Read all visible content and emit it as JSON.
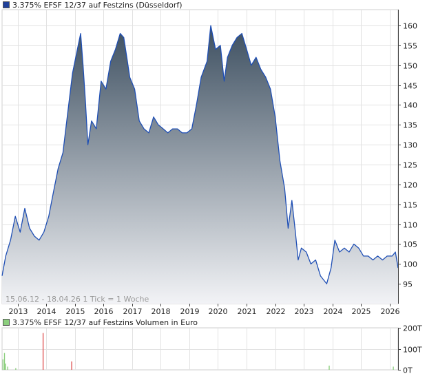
{
  "price_panel": {
    "legend_label": "3.375% EFSF 12/37 auf Festzins (Düsseldorf)",
    "legend_color": "#1f3f99",
    "info_text": "15.06.12 - 18.04.26   1 Tick = 1 Woche",
    "line_color": "#1f4fb5",
    "fill_top_color": "#3d4f60",
    "fill_bottom_color": "#f2f3f6"
  },
  "volume_panel": {
    "legend_label": "3.375% EFSF 12/37 auf Festzins Volumen in Euro",
    "legend_color": "#8ccf7e"
  },
  "chart_data": [
    {
      "type": "area",
      "title": "3.375% EFSF 12/37 auf Festzins (Düsseldorf)",
      "xlabel": "",
      "ylabel": "",
      "x_range": [
        "2012-06-15",
        "2026-04-18"
      ],
      "ylim": [
        90,
        164
      ],
      "y_ticks": [
        95,
        100,
        105,
        110,
        115,
        120,
        125,
        130,
        135,
        140,
        145,
        150,
        155,
        160
      ],
      "x_ticks": [
        "2013",
        "2014",
        "2015",
        "2016",
        "2017",
        "2018",
        "2019",
        "2020",
        "2021",
        "2022",
        "2023",
        "2024",
        "2025",
        "2026"
      ],
      "grid": true,
      "y_axis_side": "right",
      "series": [
        {
          "name": "3.375% EFSF 12/37 auf Festzins",
          "x": [
            "2012-06-15",
            "2012-08-01",
            "2012-10-01",
            "2012-12-01",
            "2013-02-01",
            "2013-04-01",
            "2013-06-01",
            "2013-08-01",
            "2013-10-01",
            "2013-12-01",
            "2014-02-01",
            "2014-04-01",
            "2014-06-01",
            "2014-08-01",
            "2014-10-01",
            "2014-12-01",
            "2015-02-01",
            "2015-03-15",
            "2015-04-15",
            "2015-05-15",
            "2015-06-15",
            "2015-08-01",
            "2015-10-01",
            "2015-12-01",
            "2016-02-01",
            "2016-04-01",
            "2016-06-01",
            "2016-08-01",
            "2016-09-15",
            "2016-11-01",
            "2016-12-01",
            "2017-02-01",
            "2017-04-01",
            "2017-06-01",
            "2017-08-01",
            "2017-10-01",
            "2017-12-01",
            "2018-02-01",
            "2018-04-01",
            "2018-06-01",
            "2018-08-01",
            "2018-10-01",
            "2018-12-01",
            "2019-02-01",
            "2019-04-01",
            "2019-06-01",
            "2019-08-15",
            "2019-10-01",
            "2019-12-01",
            "2020-02-01",
            "2020-03-20",
            "2020-05-01",
            "2020-07-01",
            "2020-09-01",
            "2020-11-01",
            "2021-01-01",
            "2021-03-01",
            "2021-05-01",
            "2021-07-01",
            "2021-09-01",
            "2021-11-01",
            "2022-01-01",
            "2022-03-01",
            "2022-05-01",
            "2022-06-15",
            "2022-08-01",
            "2022-09-15",
            "2022-10-20",
            "2022-12-01",
            "2023-02-01",
            "2023-04-01",
            "2023-06-01",
            "2023-08-01",
            "2023-10-20",
            "2023-12-15",
            "2024-02-01",
            "2024-04-01",
            "2024-06-01",
            "2024-08-01",
            "2024-10-01",
            "2024-12-01",
            "2025-02-01",
            "2025-04-01",
            "2025-06-01",
            "2025-08-01",
            "2025-10-01",
            "2025-12-01",
            "2026-02-01",
            "2026-03-15",
            "2026-04-18"
          ],
          "y": [
            97,
            102,
            106,
            112,
            108,
            114,
            109,
            107,
            106,
            108,
            112,
            118,
            124,
            128,
            138,
            148,
            154,
            158,
            150,
            141,
            130,
            136,
            134,
            146,
            144,
            151,
            154,
            158,
            157,
            151,
            147,
            144,
            136,
            134,
            133,
            137,
            135,
            134,
            133,
            134,
            134,
            133,
            133,
            134,
            140,
            147,
            151,
            160,
            154,
            155,
            146,
            152,
            155,
            157,
            158,
            154,
            150,
            152,
            149,
            147,
            144,
            137,
            126,
            119,
            109,
            116,
            108,
            101,
            104,
            103,
            100,
            101,
            97,
            95,
            99,
            106,
            103,
            104,
            103,
            105,
            104,
            102,
            102,
            101,
            102,
            101,
            102,
            102,
            103,
            99
          ]
        }
      ]
    },
    {
      "type": "bar",
      "title": "3.375% EFSF 12/37 auf Festzins Volumen in Euro",
      "xlabel": "",
      "ylabel": "",
      "ylim": [
        0,
        200000
      ],
      "y_ticks": [
        "0T",
        "100T",
        "200T"
      ],
      "y_axis_side": "right",
      "series": [
        {
          "name": "3.375% EFSF 12/37 auf Festzins Volumen in Euro",
          "bars": [
            {
              "x": "2012-06-20",
              "value": 50000,
              "color": "#8ccf7e"
            },
            {
              "x": "2012-07-10",
              "value": 80000,
              "color": "#8ccf7e"
            },
            {
              "x": "2012-07-25",
              "value": 30000,
              "color": "#8ccf7e"
            },
            {
              "x": "2012-08-20",
              "value": 15000,
              "color": "#8ccf7e"
            },
            {
              "x": "2012-12-01",
              "value": 8000,
              "color": "#8ccf7e"
            },
            {
              "x": "2013-11-15",
              "value": 175000,
              "color": "#e05a5a"
            },
            {
              "x": "2014-11-15",
              "value": 40000,
              "color": "#e05a5a"
            },
            {
              "x": "2023-11-15",
              "value": 20000,
              "color": "#8ccf7e"
            },
            {
              "x": "2026-02-10",
              "value": 15000,
              "color": "#8ccf7e"
            }
          ]
        }
      ]
    }
  ]
}
